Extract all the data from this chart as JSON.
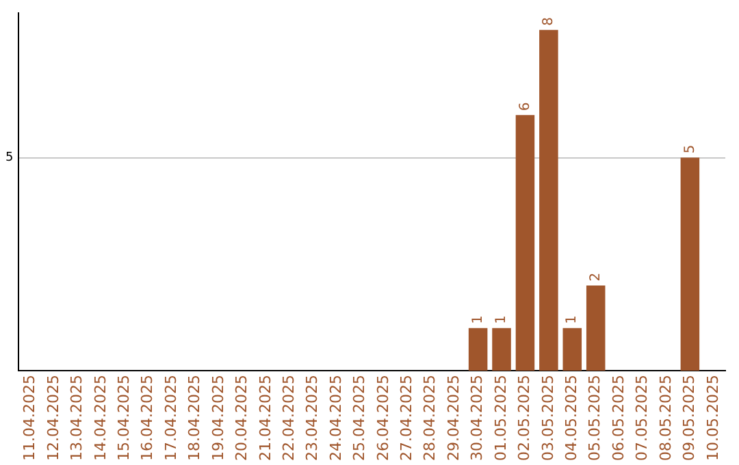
{
  "chart_data": {
    "type": "bar",
    "categories": [
      "11.04.2025",
      "12.04.2025",
      "13.04.2025",
      "14.04.2025",
      "15.04.2025",
      "16.04.2025",
      "17.04.2025",
      "18.04.2025",
      "19.04.2025",
      "20.04.2025",
      "21.04.2025",
      "22.04.2025",
      "23.04.2025",
      "24.04.2025",
      "25.04.2025",
      "26.04.2025",
      "27.04.2025",
      "28.04.2025",
      "29.04.2025",
      "30.04.2025",
      "01.05.2025",
      "02.05.2025",
      "03.05.2025",
      "04.05.2025",
      "05.05.2025",
      "06.05.2025",
      "07.05.2025",
      "08.05.2025",
      "09.05.2025",
      "10.05.2025"
    ],
    "values": [
      null,
      null,
      null,
      null,
      null,
      null,
      null,
      null,
      null,
      null,
      null,
      null,
      null,
      null,
      null,
      null,
      null,
      null,
      null,
      1,
      1,
      6,
      8,
      1,
      2,
      null,
      null,
      null,
      5,
      null
    ],
    "color": "#a0562c",
    "ylim": [
      0,
      8.4
    ],
    "yticks": [
      5
    ],
    "grid": "y",
    "data_labels": true
  }
}
